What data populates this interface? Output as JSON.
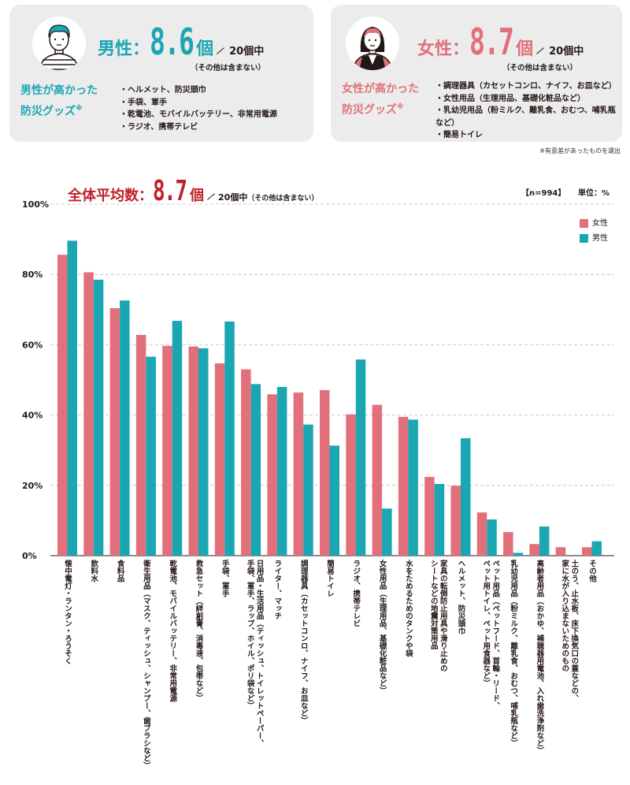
{
  "male_card": {
    "label": "男性：",
    "value": "8.6",
    "unit": "個",
    "total": "20個中",
    "note": "（その他は含まない）",
    "goods_title_line1": "男性が高かった",
    "goods_title_line2": "防災グッズ",
    "goods_mark": "※",
    "goods": [
      "ヘルメット、防災頭巾",
      "手袋、軍手",
      "乾電池、モバイルバッテリー、非常用電源",
      "ラジオ、携帯テレビ"
    ]
  },
  "female_card": {
    "label": "女性：",
    "value": "8.7",
    "unit": "個",
    "total": "20個中",
    "note": "（その他は含まない）",
    "goods_title_line1": "女性が高かった",
    "goods_title_line2": "防災グッズ",
    "goods_mark": "※",
    "goods": [
      "調理器具（カセットコンロ、ナイフ、お皿など）",
      "女性用品（生理用品、基礎化粧品など）",
      "乳幼児用品（粉ミルク、離乳食、おむつ、哺乳瓶など）",
      "簡易トイレ"
    ]
  },
  "sig_note": "※有意差があったものを選出",
  "overall": {
    "label": "全体平均数：",
    "value": "8.7",
    "unit": "個",
    "total": "20個中",
    "note": "（その他は含まない）"
  },
  "n_label": "【n=994】",
  "unit_label": "単位：%",
  "colors": {
    "female": "#e1707b",
    "male": "#1aa6b3",
    "grid": "#bdbdbd"
  },
  "chart_data": {
    "type": "bar",
    "ylim": [
      0,
      100
    ],
    "yticks": [
      "0%",
      "20%",
      "40%",
      "60%",
      "80%",
      "100%"
    ],
    "legend_position": "top-right",
    "categories": [
      "懐中電灯・ランタン・ろうそく",
      "飲料水",
      "食料品",
      "衛生用品（マスク、ティッシュ、シャンプー、歯ブラシなど）",
      "乾電池、モバイルバッテリー、非常用電源",
      "救急セット（絆創膏、消毒液、包帯など）",
      "手袋、軍手",
      "日用品・生活用品（ティッシュ、トイレットペーパー、\n手袋、軍手、ラップ、ホイル、ポリ袋など）",
      "ライター、マッチ",
      "調理器具（カセットコンロ、ナイフ、お皿など）",
      "簡易トイレ",
      "ラジオ、携帯テレビ",
      "女性用品（生理用品、基礎化粧品など）",
      "水をためるためのタンクや袋",
      "家具の転倒防止用具や滑り止めの\nシートなどの地震対策用品",
      "ヘルメット、防災頭巾",
      "ペット用品（ペットフード、首輪・リード、\nペット用トイレ、ペット用食器など）",
      "乳幼児用品（粉ミルク、離乳食、おむつ、哺乳瓶など）",
      "高齢者用品（おかゆ、補聴器用電池、入れ歯洗浄剤など）",
      "土のう、止水板、床下換気口の蓋などの、\n家に水が入り込まないためのもの",
      "その他"
    ],
    "series": [
      {
        "name": "女性",
        "values": [
          85.6,
          80.6,
          70.4,
          62.8,
          59.7,
          59.5,
          54.7,
          53.0,
          45.9,
          46.4,
          47.1,
          40.2,
          42.9,
          39.5,
          22.4,
          19.9,
          12.3,
          6.7,
          3.3,
          2.4,
          2.4
        ]
      },
      {
        "name": "男性",
        "values": [
          89.6,
          78.5,
          72.6,
          56.6,
          66.8,
          59.0,
          66.6,
          48.8,
          48.0,
          37.3,
          31.3,
          55.8,
          13.4,
          38.7,
          20.4,
          33.4,
          10.3,
          0.8,
          8.3,
          0.0,
          4.1
        ]
      }
    ]
  }
}
